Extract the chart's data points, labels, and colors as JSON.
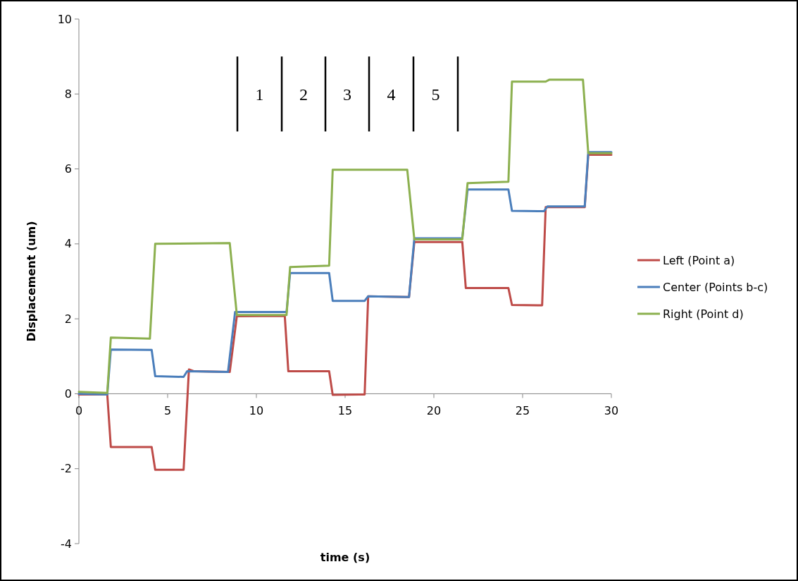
{
  "chart_data": {
    "type": "line",
    "xlabel": "time (s)",
    "ylabel": "Displacement (um)",
    "xlim": [
      0,
      30
    ],
    "xticks": [
      0,
      5,
      10,
      15,
      20,
      25,
      30
    ],
    "ylim": [
      -4,
      10
    ],
    "yticks": [
      -4,
      -2,
      0,
      2,
      4,
      6,
      8,
      10
    ],
    "grid": false,
    "legend": "right",
    "marker": "none",
    "line_style": "solid",
    "series": [
      {
        "name": "Left (Point a)",
        "color": "#be4b48",
        "x": [
          0,
          1.6,
          1.8,
          4.1,
          4.3,
          5.9,
          6.2,
          6.5,
          8.5,
          8.9,
          11.6,
          11.8,
          14.1,
          14.3,
          16.1,
          16.3,
          18.6,
          18.9,
          21.6,
          21.8,
          24.2,
          24.4,
          26.1,
          26.3,
          28.5,
          28.7,
          30
        ],
        "values": [
          -0.02,
          -0.02,
          -1.42,
          -1.42,
          -2.03,
          -2.03,
          0.65,
          0.6,
          0.58,
          2.07,
          2.08,
          0.6,
          0.6,
          -0.03,
          -0.02,
          2.6,
          2.58,
          4.05,
          4.05,
          2.82,
          2.82,
          2.37,
          2.36,
          4.98,
          4.98,
          6.38,
          6.38
        ]
      },
      {
        "name": "Center (Points b-c)",
        "color": "#4a7ebb",
        "x": [
          0,
          1.6,
          1.8,
          4.1,
          4.3,
          5.9,
          6.1,
          8.4,
          8.8,
          11.7,
          11.9,
          14.1,
          14.3,
          16.1,
          16.3,
          18.6,
          18.9,
          21.6,
          21.9,
          24.2,
          24.4,
          26.2,
          26.4,
          28.5,
          28.7,
          30
        ],
        "values": [
          0,
          -0.02,
          1.18,
          1.17,
          0.47,
          0.45,
          0.6,
          0.58,
          2.18,
          2.18,
          3.22,
          3.22,
          2.48,
          2.48,
          2.6,
          2.58,
          4.15,
          4.15,
          5.45,
          5.45,
          4.88,
          4.87,
          5,
          5,
          6.45,
          6.45
        ]
      },
      {
        "name": "Right (Point d)",
        "color": "#8cb04f",
        "x": [
          0,
          1.6,
          1.8,
          4,
          4.3,
          8.5,
          8.9,
          11.7,
          11.9,
          14.1,
          14.3,
          18.5,
          18.9,
          21.6,
          21.9,
          24.2,
          24.4,
          26.3,
          26.5,
          28.4,
          28.7,
          30
        ],
        "values": [
          0.05,
          0.02,
          1.5,
          1.47,
          4,
          4.02,
          2.1,
          2.1,
          3.38,
          3.42,
          5.98,
          5.98,
          4.12,
          4.12,
          5.62,
          5.66,
          8.33,
          8.33,
          8.38,
          8.38,
          6.42,
          6.42
        ]
      }
    ],
    "ref_lines": [
      {
        "axis": "x",
        "value": 8.93,
        "color": "#000000"
      },
      {
        "axis": "x",
        "value": 11.43,
        "color": "#000000"
      },
      {
        "axis": "x",
        "value": 13.89,
        "color": "#000000"
      },
      {
        "axis": "x",
        "value": 16.35,
        "color": "#000000"
      },
      {
        "axis": "x",
        "value": 18.85,
        "color": "#000000"
      },
      {
        "axis": "x",
        "value": 21.35,
        "color": "#000000"
      }
    ],
    "annotations": [
      "1",
      "2",
      "3",
      "4",
      "5"
    ]
  }
}
